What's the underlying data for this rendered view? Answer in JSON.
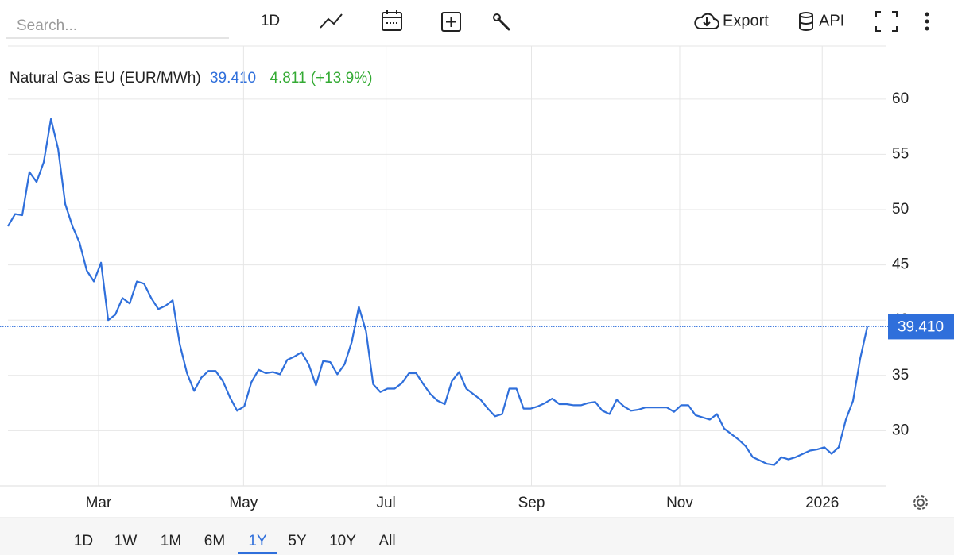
{
  "toolbar": {
    "search_placeholder": "Search...",
    "interval": "1D",
    "export": "Export",
    "api": "API"
  },
  "ranges": {
    "buttons": [
      "1D",
      "1W",
      "1M",
      "6M",
      "1Y",
      "5Y",
      "10Y",
      "All"
    ],
    "selected": "1Y"
  },
  "chart_data": {
    "type": "line",
    "legend": {
      "price": "39.410",
      "change": "4.811 (+13.9%)"
    },
    "price_tag": {
      "value": 39.41,
      "label": "39.410"
    },
    "series": [
      {
        "name": "Natural Gas EU (EUR/MWh)",
        "color": "#2f6fdb",
        "values": [
          48.5,
          49.6,
          49.5,
          53.4,
          52.5,
          54.3,
          58.2,
          55.5,
          50.5,
          48.5,
          47,
          44.5,
          43.5,
          45.2,
          40,
          40.5,
          42,
          41.5,
          43.5,
          43.3,
          42,
          41,
          41.3,
          41.8,
          37.8,
          35.2,
          33.6,
          34.8,
          35.4,
          35.4,
          34.5,
          33,
          31.8,
          32.2,
          34.4,
          35.5,
          35.2,
          35.3,
          35.1,
          36.4,
          36.7,
          37.1,
          36,
          34.1,
          36.3,
          36.2,
          35.1,
          36,
          38,
          41.2,
          39,
          34.2,
          33.5,
          33.8,
          33.8,
          34.3,
          35.2,
          35.2,
          34.2,
          33.3,
          32.7,
          32.4,
          34.5,
          35.3,
          33.8,
          33.3,
          32.8,
          32,
          31.3,
          31.5,
          33.8,
          33.8,
          32,
          32,
          32.2,
          32.5,
          32.9,
          32.4,
          32.4,
          32.3,
          32.3,
          32.5,
          32.6,
          31.8,
          31.5,
          32.8,
          32.2,
          31.8,
          31.9,
          32.1,
          32.1,
          32.1,
          32.1,
          31.7,
          32.3,
          32.3,
          31.4,
          31.2,
          31,
          31.5,
          30.2,
          29.7,
          29.2,
          28.6,
          27.6,
          27.3,
          27,
          26.9,
          27.6,
          27.4,
          27.6,
          27.9,
          28.2,
          28.3,
          28.5,
          27.9,
          28.5,
          31,
          32.7,
          36.5,
          39.41
        ]
      }
    ],
    "xlim": [
      0,
      120
    ],
    "xticks": [
      {
        "value": 12.65,
        "label": "Mar"
      },
      {
        "value": 32.9,
        "label": "May"
      },
      {
        "value": 52.8,
        "label": "Jul"
      },
      {
        "value": 73.1,
        "label": "Sep"
      },
      {
        "value": 93.8,
        "label": "Nov"
      },
      {
        "value": 113.7,
        "label": "2026"
      }
    ],
    "ylim": [
      25,
      64.8
    ],
    "yticks": [
      30,
      35,
      40,
      45,
      50,
      55,
      60
    ],
    "grid": true
  }
}
